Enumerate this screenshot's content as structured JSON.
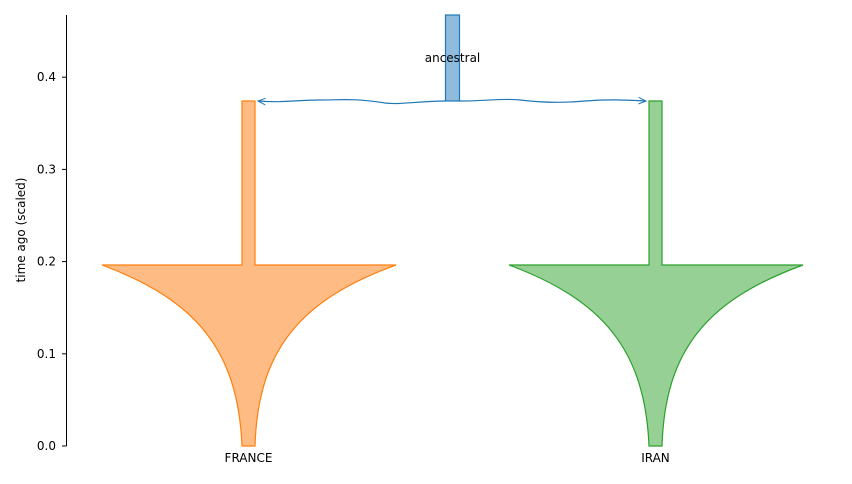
{
  "chart_data": {
    "type": "demography",
    "ylabel": "time ago (scaled)",
    "ylim": [
      0,
      0.47
    ],
    "yticks": [
      "0.0",
      "0.1",
      "0.2",
      "0.3",
      "0.4"
    ],
    "ytick_values": [
      0.0,
      0.1,
      0.2,
      0.3,
      0.4
    ],
    "populations": [
      {
        "name": "ancestral",
        "start_time": 0.373,
        "color": "#1f77b4",
        "fill": "#8fbbdc",
        "label_position": "inside-top"
      },
      {
        "name": "FRANCE",
        "end_time": 0.373,
        "bottleneck_end": 0.196,
        "color": "#ff7f0e",
        "fill": "#ffbb84",
        "label_position": "bottom"
      },
      {
        "name": "IRAN",
        "end_time": 0.373,
        "bottleneck_end": 0.196,
        "color": "#2ca02c",
        "fill": "#96d095",
        "label_position": "bottom"
      }
    ],
    "splits": [
      {
        "from": "ancestral",
        "to": [
          "FRANCE",
          "IRAN"
        ],
        "time": 0.373
      }
    ]
  }
}
